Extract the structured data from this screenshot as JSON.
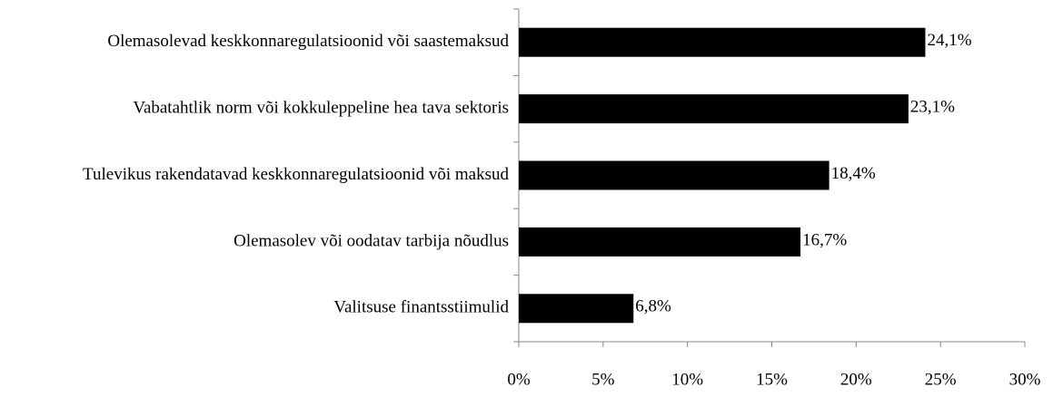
{
  "chart_data": {
    "type": "hbar",
    "categories": [
      "Olemasolevad keskkonnaregulatsioonid või saastemaksud",
      "Vabatahtlik norm või kokkuleppeline hea tava sektoris",
      "Tulevikus rakendatavad keskkonnaregulatsioonid või maksud",
      "Olemasolev või oodatav tarbija nõudlus",
      "Valitsuse finantsstiimulid"
    ],
    "values": [
      24.1,
      23.1,
      18.4,
      16.7,
      6.8
    ],
    "value_labels": [
      "24,1%",
      "23,1%",
      "18,4%",
      "16,7%",
      "6,8%"
    ],
    "color": "#000000",
    "xlim": [
      0,
      30
    ],
    "xticks": [
      {
        "value": 0,
        "label": "0%"
      },
      {
        "value": 5,
        "label": "5%"
      },
      {
        "value": 10,
        "label": "10%"
      },
      {
        "value": 15,
        "label": "15%"
      },
      {
        "value": 20,
        "label": "20%"
      },
      {
        "value": 25,
        "label": "25%"
      },
      {
        "value": 30,
        "label": "30%"
      }
    ],
    "grid": false
  }
}
